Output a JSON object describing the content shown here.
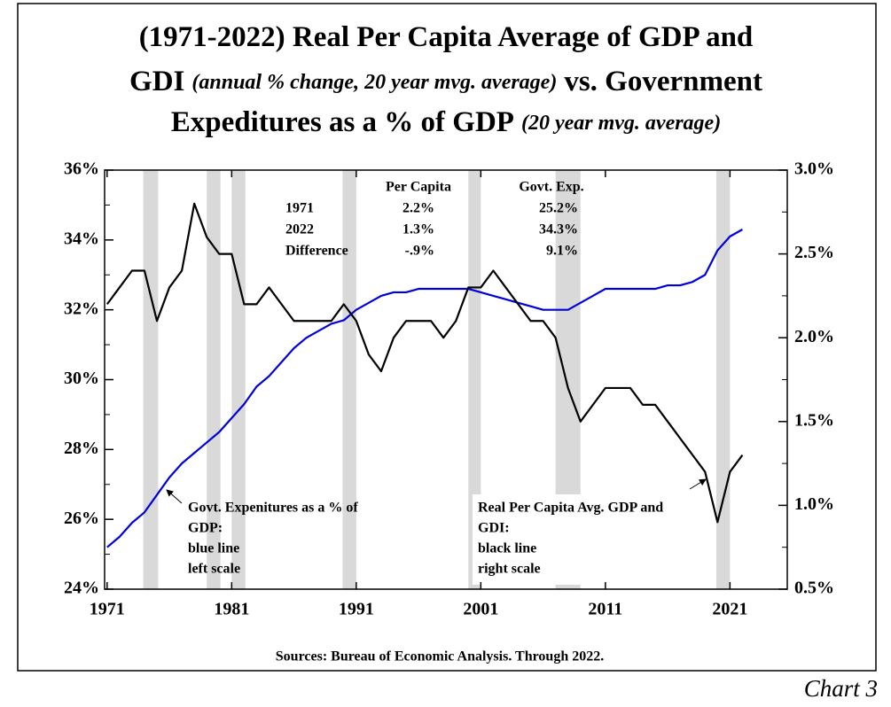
{
  "chart_data": {
    "type": "line",
    "title": [
      "(1971-2022) Real Per Capita Average of GDP and",
      "GDI",
      "(annual % change, 20 year mvg. average)",
      "vs. Government",
      "Expeditures as a % of GDP",
      "(20 year mvg. average)"
    ],
    "source": "Sources: Bureau of Economic Analysis. Through 2022.",
    "chart_label": "Chart 3",
    "x": [
      1971,
      1972,
      1973,
      1974,
      1975,
      1976,
      1977,
      1978,
      1979,
      1980,
      1981,
      1982,
      1983,
      1984,
      1985,
      1986,
      1987,
      1988,
      1989,
      1990,
      1991,
      1992,
      1993,
      1994,
      1995,
      1996,
      1997,
      1998,
      1999,
      2000,
      2001,
      2002,
      2003,
      2004,
      2005,
      2006,
      2007,
      2008,
      2009,
      2010,
      2011,
      2012,
      2013,
      2014,
      2015,
      2016,
      2017,
      2018,
      2019,
      2020,
      2021,
      2022
    ],
    "xlim": [
      1970.8,
      2025.6
    ],
    "xticks": [
      1971,
      1981,
      1991,
      2001,
      2011,
      2021
    ],
    "ylim": [
      24,
      36
    ],
    "yticks": [
      {
        "value": 24,
        "label": "24%"
      },
      {
        "value": 26,
        "label": "26%"
      },
      {
        "value": 28,
        "label": "28%"
      },
      {
        "value": 30,
        "label": "30%"
      },
      {
        "value": 32,
        "label": "32%"
      },
      {
        "value": 34,
        "label": "34%"
      },
      {
        "value": 36,
        "label": "36%"
      }
    ],
    "yminor": [
      25,
      27,
      29,
      31,
      33,
      35
    ],
    "y2lim": [
      0.5,
      3.0
    ],
    "y2ticks": [
      {
        "value": 0.5,
        "label": "0.5%"
      },
      {
        "value": 1.0,
        "label": "1.0%"
      },
      {
        "value": 1.5,
        "label": "1.5%"
      },
      {
        "value": 2.0,
        "label": "2.0%"
      },
      {
        "value": 2.5,
        "label": "2.5%"
      },
      {
        "value": 3.0,
        "label": "3.0%"
      }
    ],
    "y2minor": [
      0.75,
      1.25,
      1.75,
      2.25,
      2.75
    ],
    "shaded_periods": [
      [
        1973.9,
        1975.1
      ],
      [
        1979.0,
        1980.1
      ],
      [
        1981.0,
        1982.1
      ],
      [
        1989.9,
        1991.0
      ],
      [
        2000.0,
        2001.0
      ],
      [
        2007.0,
        2009.0
      ],
      [
        2019.9,
        2021.0
      ]
    ],
    "series": [
      {
        "name": "Govt. Exp.",
        "color": "#0000dd",
        "axis": "y",
        "values": [
          25.2,
          25.5,
          25.9,
          26.2,
          26.7,
          27.2,
          27.6,
          27.9,
          28.2,
          28.5,
          28.9,
          29.3,
          29.8,
          30.1,
          30.5,
          30.9,
          31.2,
          31.4,
          31.6,
          31.7,
          32.0,
          32.2,
          32.4,
          32.5,
          32.5,
          32.6,
          32.6,
          32.6,
          32.6,
          32.6,
          32.5,
          32.4,
          32.3,
          32.2,
          32.1,
          32.0,
          32.0,
          32.0,
          32.2,
          32.4,
          32.6,
          32.6,
          32.6,
          32.6,
          32.6,
          32.7,
          32.7,
          32.8,
          33.0,
          33.7,
          34.1,
          34.3
        ]
      },
      {
        "name": "Per Capita",
        "color": "#000000",
        "axis": "y2",
        "values": [
          2.2,
          2.3,
          2.4,
          2.4,
          2.1,
          2.3,
          2.4,
          2.8,
          2.6,
          2.5,
          2.5,
          2.2,
          2.2,
          2.3,
          2.2,
          2.1,
          2.1,
          2.1,
          2.1,
          2.2,
          2.1,
          1.9,
          1.8,
          2.0,
          2.1,
          2.1,
          2.1,
          2.0,
          2.1,
          2.3,
          2.3,
          2.4,
          2.3,
          2.2,
          2.1,
          2.1,
          2.0,
          1.7,
          1.5,
          1.6,
          1.7,
          1.7,
          1.7,
          1.6,
          1.6,
          1.5,
          1.4,
          1.3,
          1.2,
          0.9,
          1.2,
          1.3
        ]
      }
    ],
    "table": {
      "headers": [
        "Per Capita",
        "Govt. Exp."
      ],
      "rows": [
        [
          "1971",
          "2.2%",
          "25.2%"
        ],
        [
          "2022",
          "1.3%",
          "34.3%"
        ],
        [
          "Difference",
          "-.9%",
          "9.1%"
        ]
      ]
    },
    "annotations": [
      [
        "Govt. Expenitures as a % of",
        "GDP:",
        "blue line",
        "left scale"
      ],
      [
        "Real Per Capita Avg. GDP and",
        "GDI:",
        "black line",
        "right scale"
      ]
    ]
  }
}
